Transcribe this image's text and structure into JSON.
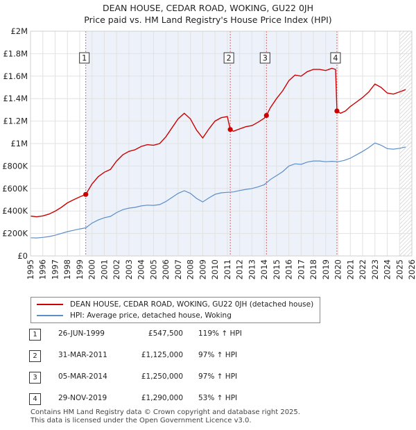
{
  "header": {
    "title_line1": "DEAN HOUSE, CEDAR ROAD, WOKING, GU22 0JH",
    "title_line2": "Price paid vs. HM Land Registry's House Price Index (HPI)"
  },
  "chart_data": {
    "type": "line",
    "title": "DEAN HOUSE, CEDAR ROAD, WOKING, GU22 0JH — Price paid vs. HM Land Registry's House Price Index (HPI)",
    "xlim": [
      1995,
      2026
    ],
    "ylim": [
      0,
      2000000
    ],
    "x_ticks": [
      1995,
      1996,
      1997,
      1998,
      1999,
      2000,
      2001,
      2002,
      2003,
      2004,
      2005,
      2006,
      2007,
      2008,
      2009,
      2010,
      2011,
      2012,
      2013,
      2014,
      2015,
      2016,
      2017,
      2018,
      2019,
      2020,
      2021,
      2022,
      2023,
      2024,
      2025,
      2026
    ],
    "y_ticks": [
      {
        "value": 0,
        "label": "£0"
      },
      {
        "value": 200000,
        "label": "£200K"
      },
      {
        "value": 400000,
        "label": "£400K"
      },
      {
        "value": 600000,
        "label": "£600K"
      },
      {
        "value": 800000,
        "label": "£800K"
      },
      {
        "value": 1000000,
        "label": "£1M"
      },
      {
        "value": 1200000,
        "label": "£1.2M"
      },
      {
        "value": 1400000,
        "label": "£1.4M"
      },
      {
        "value": 1600000,
        "label": "£1.6M"
      },
      {
        "value": 1800000,
        "label": "£1.8M"
      },
      {
        "value": 2000000,
        "label": "£2M"
      }
    ],
    "shaded_span": [
      1999.49,
      2019.91
    ],
    "forecast_from": 2025.0,
    "series": [
      {
        "name": "DEAN HOUSE, CEDAR ROAD, WOKING, GU22 0JH (detached house)",
        "color": "#cc0000",
        "points": [
          [
            1995.0,
            355000
          ],
          [
            1995.5,
            348000
          ],
          [
            1996.0,
            356000
          ],
          [
            1996.5,
            372000
          ],
          [
            1997.0,
            398000
          ],
          [
            1997.5,
            432000
          ],
          [
            1998.0,
            472000
          ],
          [
            1998.5,
            500000
          ],
          [
            1999.0,
            525000
          ],
          [
            1999.49,
            547500
          ],
          [
            2000.0,
            640000
          ],
          [
            2000.5,
            705000
          ],
          [
            2001.0,
            745000
          ],
          [
            2001.5,
            770000
          ],
          [
            2002.0,
            845000
          ],
          [
            2002.5,
            900000
          ],
          [
            2003.0,
            930000
          ],
          [
            2003.5,
            945000
          ],
          [
            2004.0,
            975000
          ],
          [
            2004.5,
            990000
          ],
          [
            2005.0,
            985000
          ],
          [
            2005.5,
            1000000
          ],
          [
            2006.0,
            1060000
          ],
          [
            2006.5,
            1140000
          ],
          [
            2007.0,
            1220000
          ],
          [
            2007.5,
            1270000
          ],
          [
            2008.0,
            1220000
          ],
          [
            2008.5,
            1120000
          ],
          [
            2009.0,
            1050000
          ],
          [
            2009.5,
            1130000
          ],
          [
            2010.0,
            1200000
          ],
          [
            2010.5,
            1230000
          ],
          [
            2011.0,
            1240000
          ],
          [
            2011.24,
            1125000
          ],
          [
            2011.5,
            1110000
          ],
          [
            2012.0,
            1130000
          ],
          [
            2012.5,
            1150000
          ],
          [
            2013.0,
            1160000
          ],
          [
            2013.5,
            1190000
          ],
          [
            2014.0,
            1225000
          ],
          [
            2014.18,
            1250000
          ],
          [
            2014.5,
            1320000
          ],
          [
            2015.0,
            1400000
          ],
          [
            2015.5,
            1470000
          ],
          [
            2016.0,
            1560000
          ],
          [
            2016.5,
            1610000
          ],
          [
            2017.0,
            1600000
          ],
          [
            2017.5,
            1640000
          ],
          [
            2018.0,
            1660000
          ],
          [
            2018.5,
            1660000
          ],
          [
            2019.0,
            1650000
          ],
          [
            2019.5,
            1670000
          ],
          [
            2019.8,
            1660000
          ],
          [
            2019.91,
            1290000
          ],
          [
            2020.2,
            1270000
          ],
          [
            2020.6,
            1290000
          ],
          [
            2021.0,
            1330000
          ],
          [
            2021.5,
            1370000
          ],
          [
            2022.0,
            1410000
          ],
          [
            2022.5,
            1460000
          ],
          [
            2023.0,
            1530000
          ],
          [
            2023.5,
            1500000
          ],
          [
            2024.0,
            1450000
          ],
          [
            2024.5,
            1440000
          ],
          [
            2025.0,
            1460000
          ],
          [
            2025.5,
            1480000
          ]
        ]
      },
      {
        "name": "HPI: Average price, detached house, Woking",
        "color": "#5b8ec7",
        "points": [
          [
            1995.0,
            162000
          ],
          [
            1995.5,
            160000
          ],
          [
            1996.0,
            165000
          ],
          [
            1996.5,
            172000
          ],
          [
            1997.0,
            184000
          ],
          [
            1997.5,
            200000
          ],
          [
            1998.0,
            216000
          ],
          [
            1998.5,
            228000
          ],
          [
            1999.0,
            240000
          ],
          [
            1999.5,
            250000
          ],
          [
            2000.0,
            292000
          ],
          [
            2000.5,
            320000
          ],
          [
            2001.0,
            340000
          ],
          [
            2001.5,
            352000
          ],
          [
            2002.0,
            386000
          ],
          [
            2002.5,
            412000
          ],
          [
            2003.0,
            425000
          ],
          [
            2003.5,
            432000
          ],
          [
            2004.0,
            445000
          ],
          [
            2004.5,
            452000
          ],
          [
            2005.0,
            450000
          ],
          [
            2005.5,
            457000
          ],
          [
            2006.0,
            484000
          ],
          [
            2006.5,
            520000
          ],
          [
            2007.0,
            557000
          ],
          [
            2007.5,
            580000
          ],
          [
            2008.0,
            557000
          ],
          [
            2008.5,
            512000
          ],
          [
            2009.0,
            480000
          ],
          [
            2009.5,
            516000
          ],
          [
            2010.0,
            548000
          ],
          [
            2010.5,
            562000
          ],
          [
            2011.0,
            566000
          ],
          [
            2011.5,
            570000
          ],
          [
            2012.0,
            582000
          ],
          [
            2012.5,
            592000
          ],
          [
            2013.0,
            600000
          ],
          [
            2013.5,
            615000
          ],
          [
            2014.0,
            634000
          ],
          [
            2014.5,
            680000
          ],
          [
            2015.0,
            715000
          ],
          [
            2015.5,
            750000
          ],
          [
            2016.0,
            800000
          ],
          [
            2016.5,
            820000
          ],
          [
            2017.0,
            815000
          ],
          [
            2017.5,
            835000
          ],
          [
            2018.0,
            845000
          ],
          [
            2018.5,
            845000
          ],
          [
            2019.0,
            838000
          ],
          [
            2019.5,
            842000
          ],
          [
            2020.0,
            838000
          ],
          [
            2020.5,
            850000
          ],
          [
            2021.0,
            870000
          ],
          [
            2021.5,
            900000
          ],
          [
            2022.0,
            930000
          ],
          [
            2022.5,
            965000
          ],
          [
            2023.0,
            1005000
          ],
          [
            2023.5,
            985000
          ],
          [
            2024.0,
            955000
          ],
          [
            2024.5,
            950000
          ],
          [
            2025.0,
            958000
          ],
          [
            2025.5,
            970000
          ]
        ]
      }
    ],
    "sales": [
      {
        "num": "1",
        "x": 1999.49,
        "price": 547500
      },
      {
        "num": "2",
        "x": 2011.24,
        "price": 1125000
      },
      {
        "num": "3",
        "x": 2014.18,
        "price": 1250000
      },
      {
        "num": "4",
        "x": 2019.91,
        "price": 1290000
      }
    ]
  },
  "legend": {
    "property_label": "DEAN HOUSE, CEDAR ROAD, WOKING, GU22 0JH (detached house)",
    "hpi_label": "HPI: Average price, detached house, Woking"
  },
  "sales_table": [
    {
      "num": "1",
      "date": "26-JUN-1999",
      "price": "£547,500",
      "hpi": "119% ↑ HPI"
    },
    {
      "num": "2",
      "date": "31-MAR-2011",
      "price": "£1,125,000",
      "hpi": "97% ↑ HPI"
    },
    {
      "num": "3",
      "date": "05-MAR-2014",
      "price": "£1,250,000",
      "hpi": "97% ↑ HPI"
    },
    {
      "num": "4",
      "date": "29-NOV-2019",
      "price": "£1,290,000",
      "hpi": "53% ↑ HPI"
    }
  ],
  "footer": {
    "line1": "Contains HM Land Registry data © Crown copyright and database right 2025.",
    "line2": "This data is licensed under the Open Government Licence v3.0."
  }
}
